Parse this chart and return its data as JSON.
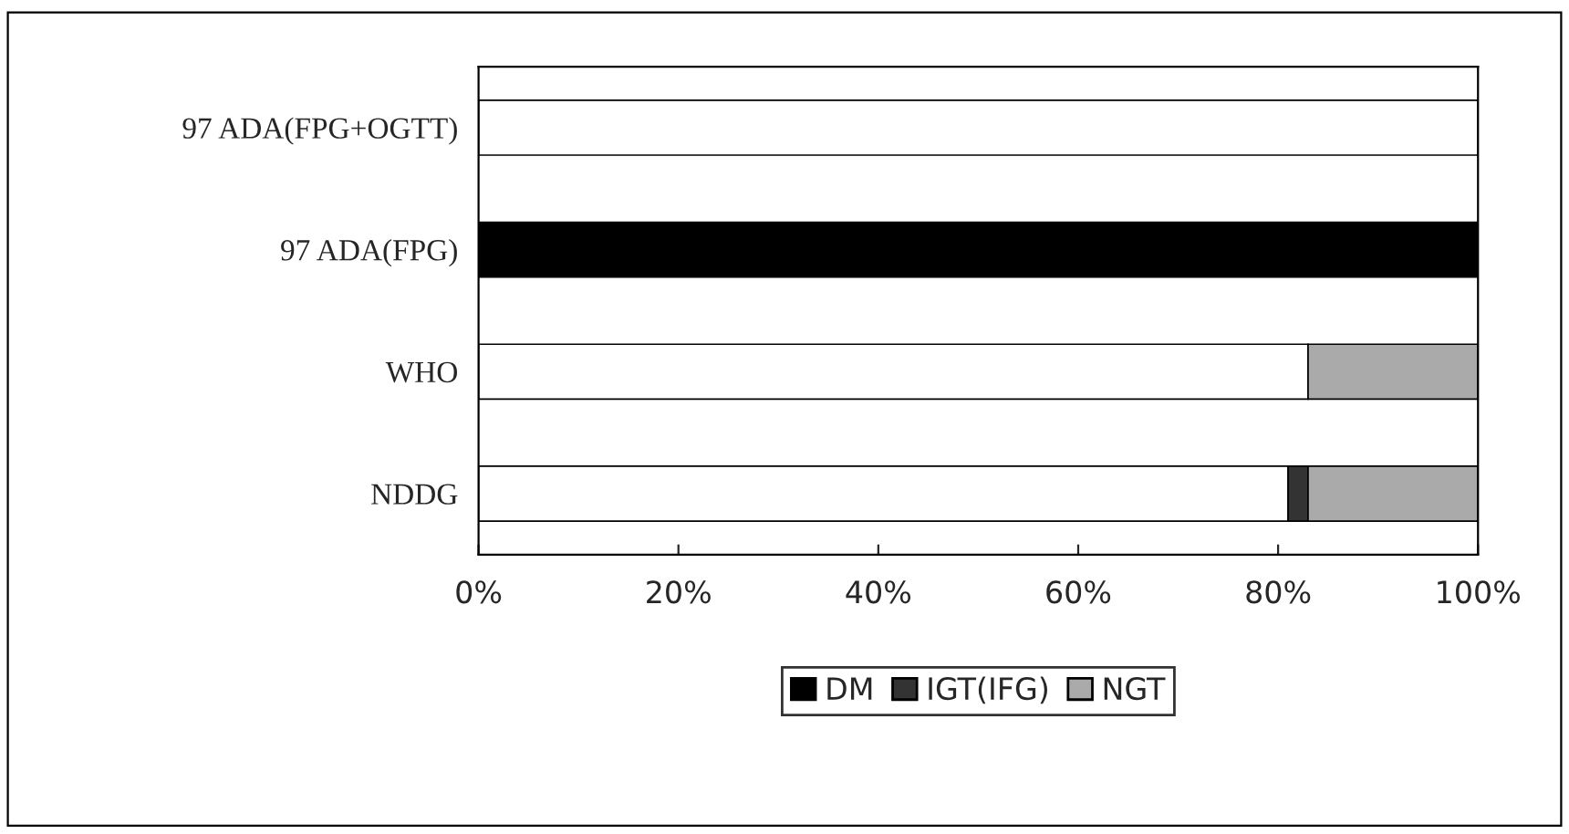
{
  "chart_data": {
    "type": "bar",
    "orientation": "horizontal",
    "stacked": true,
    "categories": [
      "97 ADA(FPG+OGTT)",
      "97 ADA(FPG)",
      "WHO",
      "NDDG"
    ],
    "series": [
      {
        "color": "#ffffff",
        "values": [
          100,
          null,
          83,
          81
        ]
      },
      {
        "name": "DM",
        "color": "#000000",
        "values": [
          null,
          100,
          null,
          null
        ]
      },
      {
        "name": "IGT(IFG)",
        "color": "#333333",
        "values": [
          null,
          null,
          null,
          2
        ]
      },
      {
        "name": "NGT",
        "color": "#aaaaaa",
        "values": [
          null,
          null,
          17,
          17
        ]
      }
    ],
    "xlim": [
      0,
      100
    ],
    "xticks": [
      {
        "value": 0,
        "label": "0%"
      },
      {
        "value": 20,
        "label": "20%"
      },
      {
        "value": 40,
        "label": "40%"
      },
      {
        "value": 60,
        "label": "60%"
      },
      {
        "value": 80,
        "label": "80%"
      },
      {
        "value": 100,
        "label": "100%"
      }
    ],
    "grid": false,
    "legend": "bottom"
  }
}
